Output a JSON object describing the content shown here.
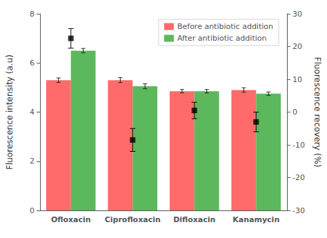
{
  "chart_data": {
    "type": "bar",
    "categories": [
      "Ofloxacin",
      "Ciprofloxacin",
      "Difloxacin",
      "Kanamycin"
    ],
    "series": [
      {
        "name": "Before antibiotic addition",
        "color": "#FF6B6B",
        "values": [
          5.3,
          5.3,
          4.85,
          4.9
        ],
        "errors": [
          0.09,
          0.1,
          0.07,
          0.09
        ]
      },
      {
        "name": "After antibiotic addition",
        "color": "#5CB85C",
        "values": [
          6.5,
          5.05,
          4.85,
          4.75
        ],
        "errors": [
          0.09,
          0.1,
          0.07,
          0.07
        ]
      },
      {
        "type": "scatter",
        "axis": "y2",
        "color": "#000000",
        "marker": "square",
        "values": [
          22.5,
          -8.5,
          0.5,
          -3.0
        ],
        "errors": [
          3.0,
          3.5,
          2.5,
          3.0
        ]
      }
    ],
    "ylabel": "Fluorescence intensity (a.u)",
    "y2label": "Fluorescence recovery (%)",
    "ylim": [
      0,
      8
    ],
    "yticks": [
      0,
      2,
      4,
      6,
      8
    ],
    "y2lim": [
      -30,
      30
    ],
    "y2ticks": [
      -30,
      -20,
      -10,
      0,
      10,
      20,
      30
    ],
    "grid": false,
    "legend": "upper right"
  }
}
